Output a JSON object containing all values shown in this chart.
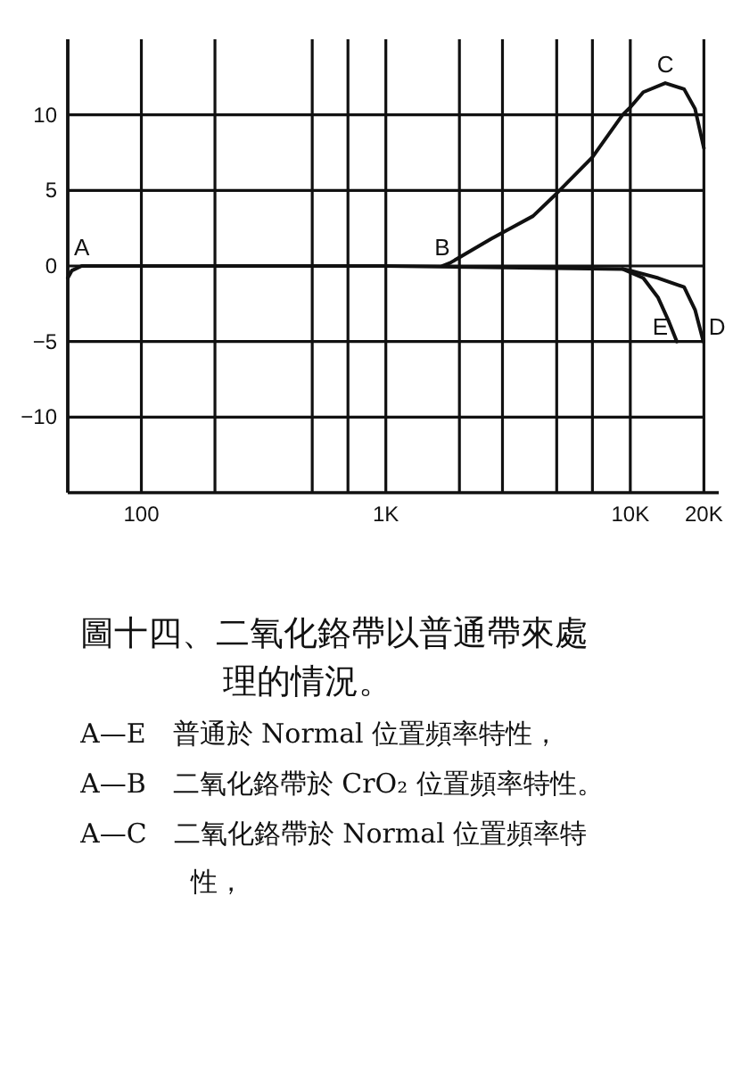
{
  "chart_data": {
    "type": "line",
    "title": "圖十四、二氧化鉻帶以普通帶來處理的情況。",
    "log": "x",
    "grid": true,
    "marker": "none",
    "line_style": "solid",
    "xlim": [
      50,
      23000
    ],
    "ylim": [
      -15,
      15
    ],
    "xticks": [
      {
        "value": 50,
        "label": null
      },
      {
        "value": 100,
        "label": "100"
      },
      {
        "value": 200,
        "label": null
      },
      {
        "value": 500,
        "label": null
      },
      {
        "value": 700,
        "label": null
      },
      {
        "value": 1000,
        "label": "1K"
      },
      {
        "value": 2000,
        "label": null
      },
      {
        "value": 3000,
        "label": null
      },
      {
        "value": 5000,
        "label": null
      },
      {
        "value": 7000,
        "label": null
      },
      {
        "value": 10000,
        "label": "10K"
      },
      {
        "value": 20000,
        "label": "20K"
      }
    ],
    "yticks": [
      -10,
      -5,
      0,
      5,
      10
    ],
    "series": [
      {
        "color": "#111111",
        "x": [
          50,
          52,
          57,
          1000,
          9300,
          11300,
          13000,
          14400,
          15500
        ],
        "values": [
          -0.8,
          -0.3,
          0,
          0,
          -0.2,
          -0.8,
          -2.1,
          -3.7,
          -5
        ]
      },
      {
        "color": "#111111",
        "x": [
          9300,
          10000,
          13000,
          16600,
          18400,
          19900
        ],
        "values": [
          -0.2,
          -0.3,
          -0.8,
          -1.4,
          -2.9,
          -5
        ]
      },
      {
        "color": "#111111",
        "x": [
          1700,
          1830,
          2700,
          4000,
          5000,
          7000,
          9300,
          10000,
          11300,
          13900,
          16600,
          18400,
          20000
        ],
        "values": [
          0,
          0.2,
          1.8,
          3.3,
          4.8,
          7.2,
          10,
          10.5,
          11.5,
          12.1,
          11.7,
          10.4,
          7.8
        ]
      }
    ],
    "annotations": [
      {
        "text": "A",
        "x": 57,
        "y": 0
      },
      {
        "text": "B",
        "x": 1700,
        "y": 0
      },
      {
        "text": "C",
        "x": 13900,
        "y": 12.1
      },
      {
        "text": "D",
        "x": 19900,
        "y": -5
      },
      {
        "text": "E",
        "x": 15500,
        "y": -5
      },
      "A—E　普通於 Normal 位置頻率特性，",
      "A—B　二氧化鉻帶於 CrO₂ 位置頻率特性。",
      "A—C　二氧化鉻帶於 Normal 位置頻率特性，"
    ]
  }
}
